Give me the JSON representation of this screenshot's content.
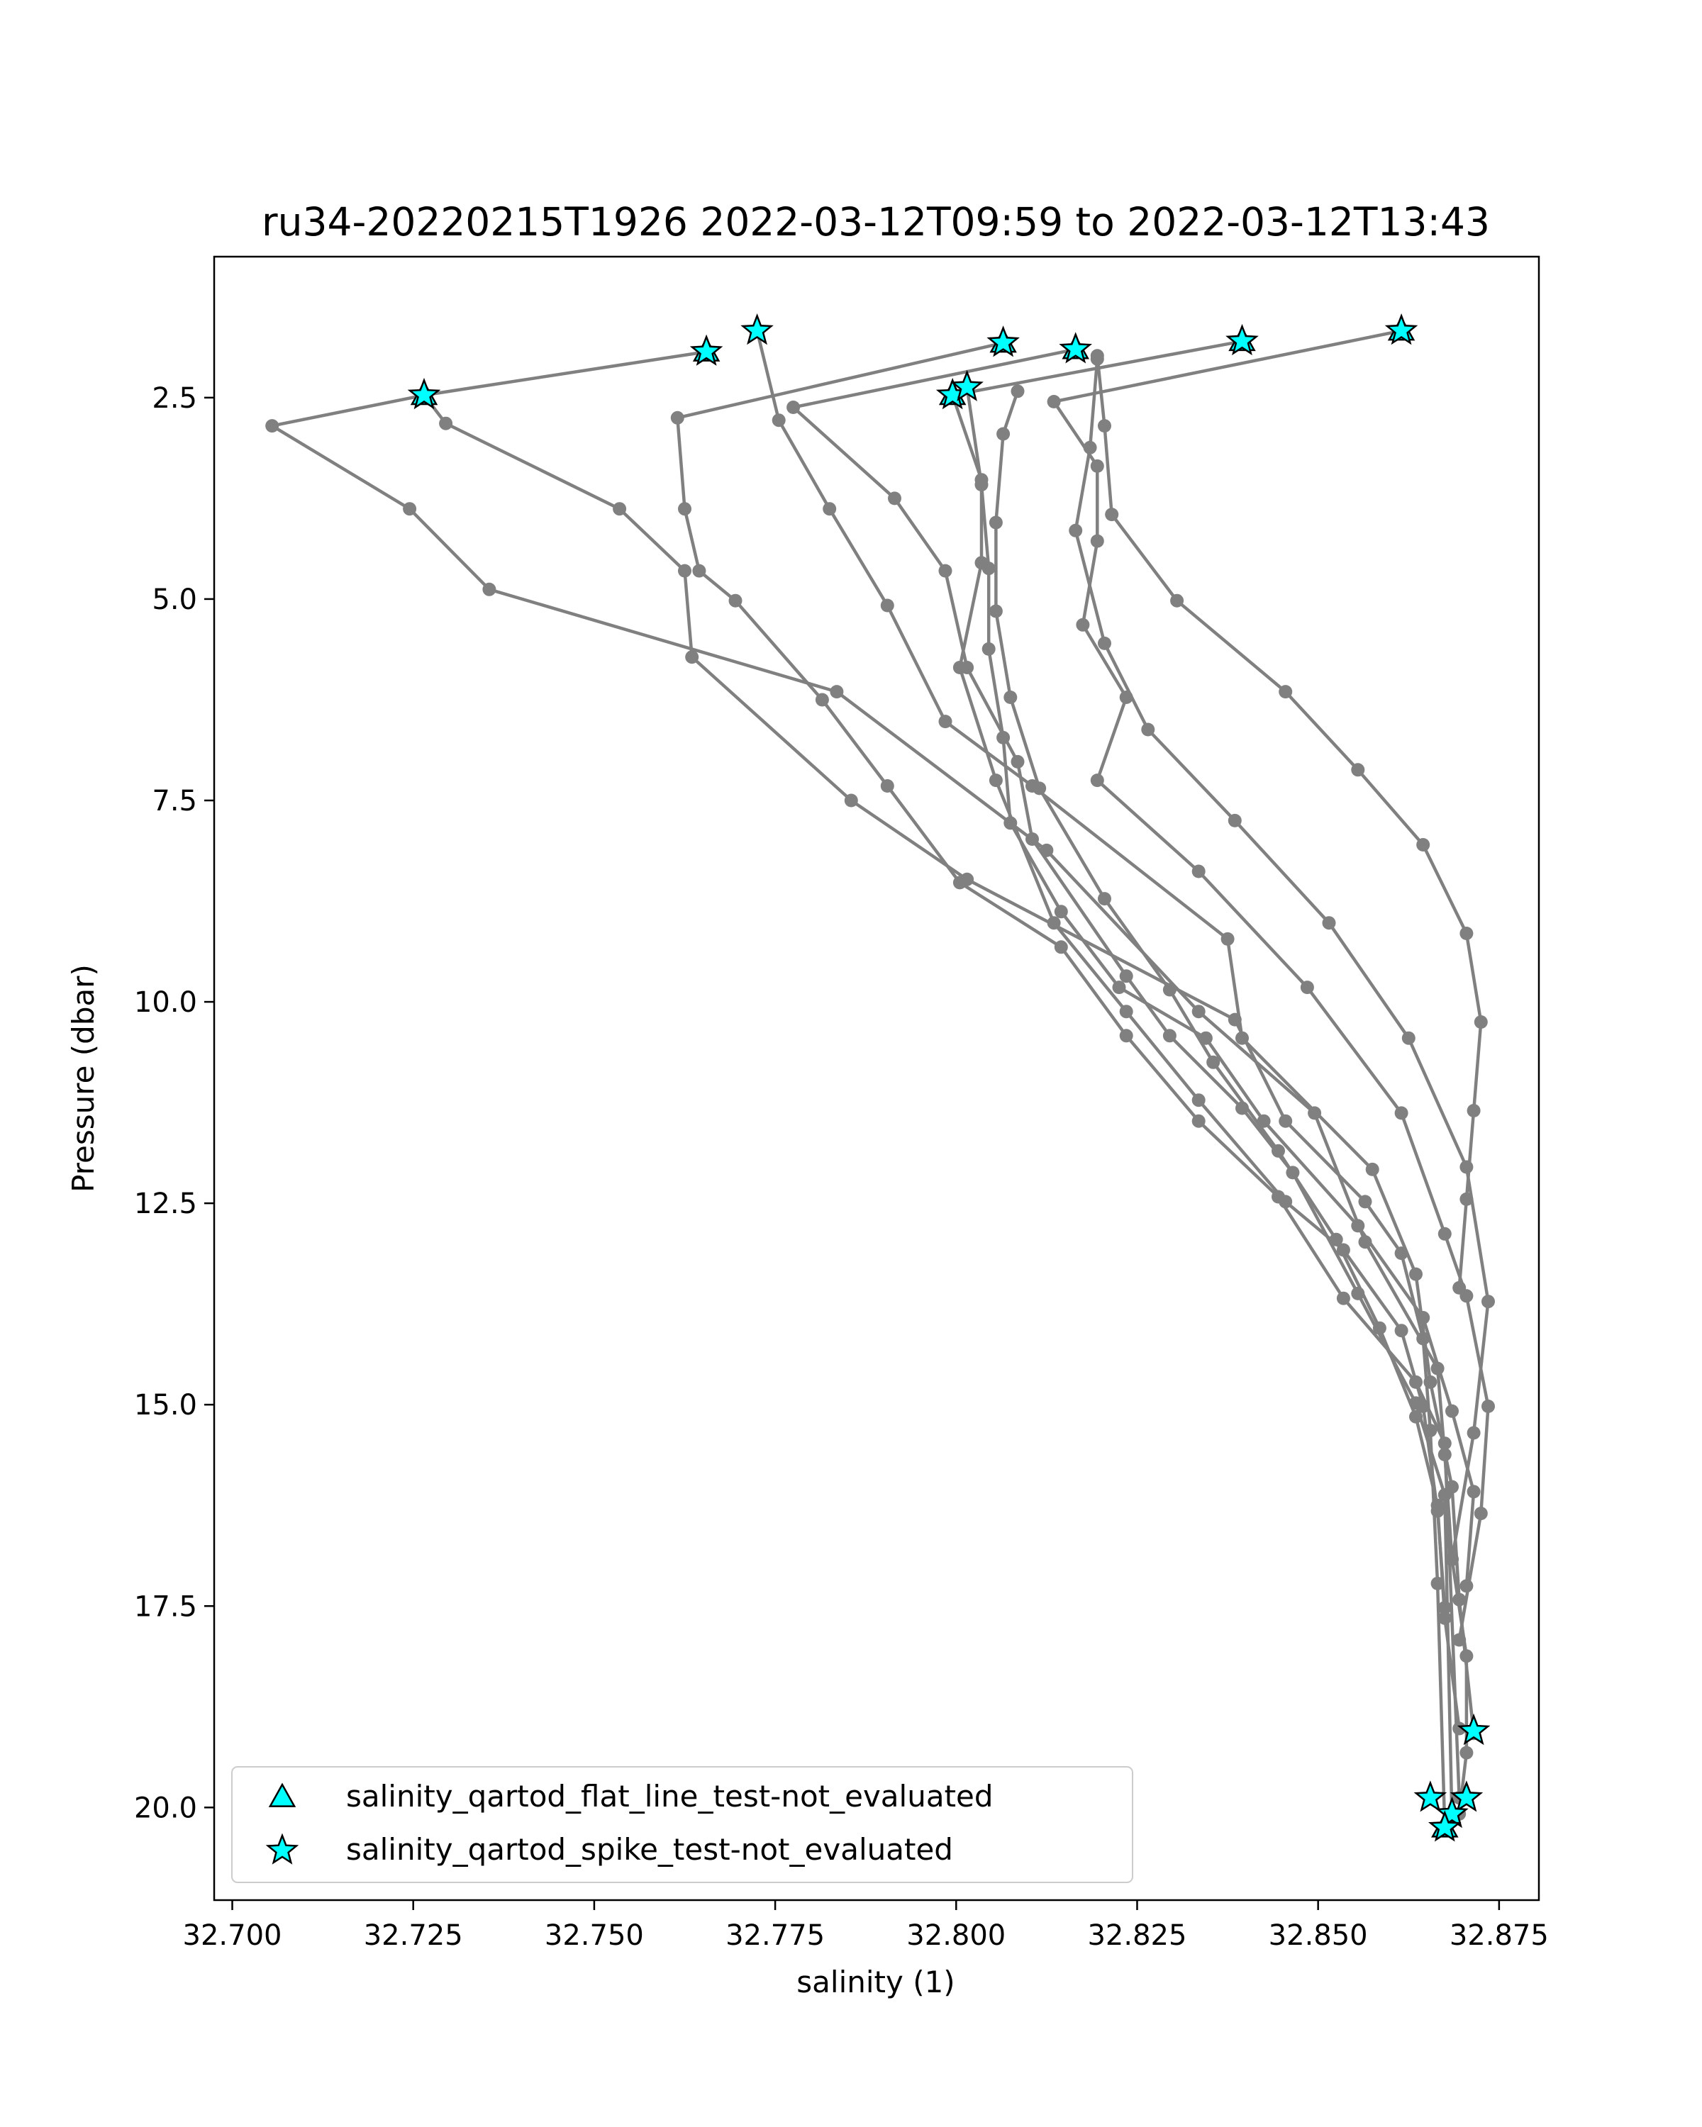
{
  "chart_data": {
    "type": "line",
    "title": "ru34-20220215T1926 2022-03-12T09:59 to 2022-03-12T13:43",
    "xlabel": "salinity (1)",
    "ylabel": "Pressure (dbar)",
    "xlim": [
      32.6975,
      32.8805
    ],
    "ylim": [
      21.15,
      0.75
    ],
    "y_inverted": true,
    "grid": false,
    "legend_position": "lower-left",
    "x_ticks": [
      32.7,
      32.725,
      32.75,
      32.775,
      32.8,
      32.825,
      32.85,
      32.875
    ],
    "x_tick_labels": [
      "32.700",
      "32.725",
      "32.750",
      "32.775",
      "32.800",
      "32.825",
      "32.850",
      "32.875"
    ],
    "y_ticks": [
      2.5,
      5.0,
      7.5,
      10.0,
      12.5,
      15.0,
      17.5,
      20.0
    ],
    "y_tick_labels": [
      "2.5",
      "5.0",
      "7.5",
      "10.0",
      "12.5",
      "15.0",
      "17.5",
      "20.0"
    ],
    "line_color": "#808080",
    "marker_color": "#808080",
    "flag_color": "#00ffff",
    "legend": [
      {
        "label": "salinity_qartod_flat_line_test-not_evaluated",
        "marker": "triangle"
      },
      {
        "label": "salinity_qartod_spike_test-not_evaluated",
        "marker": "star"
      }
    ],
    "series": [
      {
        "x": [
          32.7265,
          32.7055,
          32.7245,
          32.7355,
          32.7835,
          32.8125,
          32.8335,
          32.8495,
          32.8565,
          32.8665,
          32.8675,
          32.8685,
          32.8705,
          32.8705,
          32.8695
        ],
        "y": [
          2.47,
          2.85,
          3.88,
          4.88,
          6.15,
          8.12,
          10.12,
          11.38,
          12.98,
          14.55,
          15.62,
          16.92,
          18.12,
          19.32,
          20.08
        ]
      },
      {
        "x": [
          32.7655,
          32.7265,
          32.7295,
          32.7535,
          32.7625,
          32.7635,
          32.7855,
          32.8015,
          32.8385,
          32.8455,
          32.8565,
          32.8615,
          32.8645,
          32.8655,
          32.8665,
          32.8675
        ],
        "y": [
          1.93,
          2.47,
          2.82,
          3.88,
          4.65,
          5.72,
          7.5,
          8.48,
          10.22,
          11.48,
          12.48,
          13.12,
          14.18,
          15.32,
          17.22,
          20.25
        ]
      },
      {
        "x": [
          32.7725,
          32.7755,
          32.7825,
          32.7905,
          32.7985,
          32.8105,
          32.8375,
          32.8395,
          32.8575,
          32.8635,
          32.8655,
          32.8685,
          32.8695,
          32.8715
        ],
        "y": [
          1.67,
          2.78,
          3.88,
          5.08,
          6.52,
          7.32,
          9.22,
          10.45,
          12.08,
          13.38,
          14.72,
          16.02,
          17.42,
          19.08
        ]
      },
      {
        "x": [
          32.8065,
          32.7615,
          32.7625,
          32.7645,
          32.7695,
          32.7815,
          32.7905,
          32.8005,
          32.8145,
          32.8235,
          32.8335,
          32.8445,
          32.8535,
          32.8635,
          32.8675,
          32.8695
        ],
        "y": [
          1.82,
          2.75,
          3.88,
          4.65,
          5.02,
          6.25,
          7.32,
          8.52,
          9.32,
          10.42,
          11.48,
          12.42,
          13.68,
          14.72,
          15.48,
          19.88
        ]
      },
      {
        "x": [
          32.8165,
          32.7775,
          32.7915,
          32.7985,
          32.8015,
          32.8085,
          32.8105,
          32.8235,
          32.8295,
          32.8395,
          32.8465,
          32.8555,
          32.8635,
          32.8675,
          32.8685
        ],
        "y": [
          1.9,
          2.62,
          3.75,
          4.65,
          5.85,
          7.02,
          7.98,
          9.68,
          10.42,
          11.32,
          12.12,
          13.62,
          14.98,
          16.12,
          20.15
        ]
      },
      {
        "x": [
          32.8395,
          32.7995,
          32.8035,
          32.8035,
          32.8005,
          32.8055,
          32.8135,
          32.8235,
          32.8335,
          32.8455,
          32.8535,
          32.8615,
          32.8645,
          32.8665,
          32.8675
        ],
        "y": [
          1.8,
          2.47,
          3.52,
          4.55,
          5.85,
          7.25,
          9.02,
          10.12,
          11.22,
          12.48,
          13.08,
          14.08,
          15.02,
          16.32,
          17.52
        ]
      },
      {
        "x": [
          32.8015,
          32.8035,
          32.8045,
          32.8045,
          32.8065,
          32.8075,
          32.8145,
          32.8225,
          32.8345,
          32.8425,
          32.8555,
          32.8645,
          32.8685,
          32.8715,
          32.8705
        ],
        "y": [
          2.37,
          3.58,
          4.62,
          5.62,
          6.72,
          7.78,
          8.88,
          9.82,
          10.45,
          11.48,
          12.78,
          13.92,
          15.08,
          16.08,
          17.25
        ]
      },
      {
        "x": [
          32.8615,
          32.8135,
          32.8195,
          32.8195,
          32.8175,
          32.8235,
          32.8195,
          32.8335,
          32.8485,
          32.8615,
          32.8675,
          32.8705,
          32.8735,
          32.8725,
          32.8695
        ],
        "y": [
          1.67,
          2.55,
          3.35,
          4.28,
          5.32,
          6.22,
          7.25,
          8.38,
          9.82,
          11.38,
          12.88,
          13.65,
          15.02,
          16.35,
          17.92
        ]
      },
      {
        "x": [
          32.8085,
          32.8065,
          32.8055,
          32.8055,
          32.8075,
          32.8115,
          32.8205,
          32.8295,
          32.8355,
          32.8445,
          32.8525,
          32.8585,
          32.8635,
          32.8665,
          32.8675,
          32.8695
        ],
        "y": [
          2.42,
          2.95,
          4.05,
          5.15,
          6.22,
          7.35,
          8.72,
          9.85,
          10.75,
          11.85,
          12.95,
          14.05,
          15.15,
          16.25,
          17.65,
          19.02
        ]
      },
      {
        "x": [
          32.8195,
          32.8185,
          32.8165,
          32.8205,
          32.8265,
          32.8385,
          32.8515,
          32.8625,
          32.8705,
          32.8735,
          32.8715,
          32.8685
        ],
        "y": [
          2.02,
          3.12,
          4.15,
          5.55,
          6.62,
          7.75,
          9.02,
          10.45,
          12.05,
          13.72,
          15.35,
          16.92
        ]
      },
      {
        "x": [
          32.8195,
          32.8205,
          32.8215,
          32.8305,
          32.8455,
          32.8555,
          32.8645,
          32.8705,
          32.8725,
          32.8715,
          32.8705,
          32.8695
        ],
        "y": [
          1.98,
          2.85,
          3.95,
          5.02,
          6.15,
          7.12,
          8.05,
          9.15,
          10.25,
          11.35,
          12.45,
          13.55
        ]
      }
    ],
    "flags_star": [
      {
        "x": 32.7265,
        "y": 2.47
      },
      {
        "x": 32.7655,
        "y": 1.93
      },
      {
        "x": 32.7725,
        "y": 1.67
      },
      {
        "x": 32.8065,
        "y": 1.82
      },
      {
        "x": 32.8165,
        "y": 1.9
      },
      {
        "x": 32.8395,
        "y": 1.8
      },
      {
        "x": 32.8615,
        "y": 1.67
      },
      {
        "x": 32.7995,
        "y": 2.47
      },
      {
        "x": 32.8015,
        "y": 2.37
      },
      {
        "x": 32.8715,
        "y": 19.05
      },
      {
        "x": 32.8655,
        "y": 19.88
      },
      {
        "x": 32.8705,
        "y": 19.88
      },
      {
        "x": 32.8685,
        "y": 20.08
      },
      {
        "x": 32.8675,
        "y": 20.25
      }
    ],
    "flags_triangle": [
      {
        "x": 32.7265,
        "y": 2.47
      },
      {
        "x": 32.7655,
        "y": 1.93
      },
      {
        "x": 32.8065,
        "y": 1.82
      },
      {
        "x": 32.8165,
        "y": 1.9
      },
      {
        "x": 32.8395,
        "y": 1.8
      },
      {
        "x": 32.8615,
        "y": 1.67
      },
      {
        "x": 32.7995,
        "y": 2.47
      },
      {
        "x": 32.8675,
        "y": 20.25
      }
    ]
  }
}
